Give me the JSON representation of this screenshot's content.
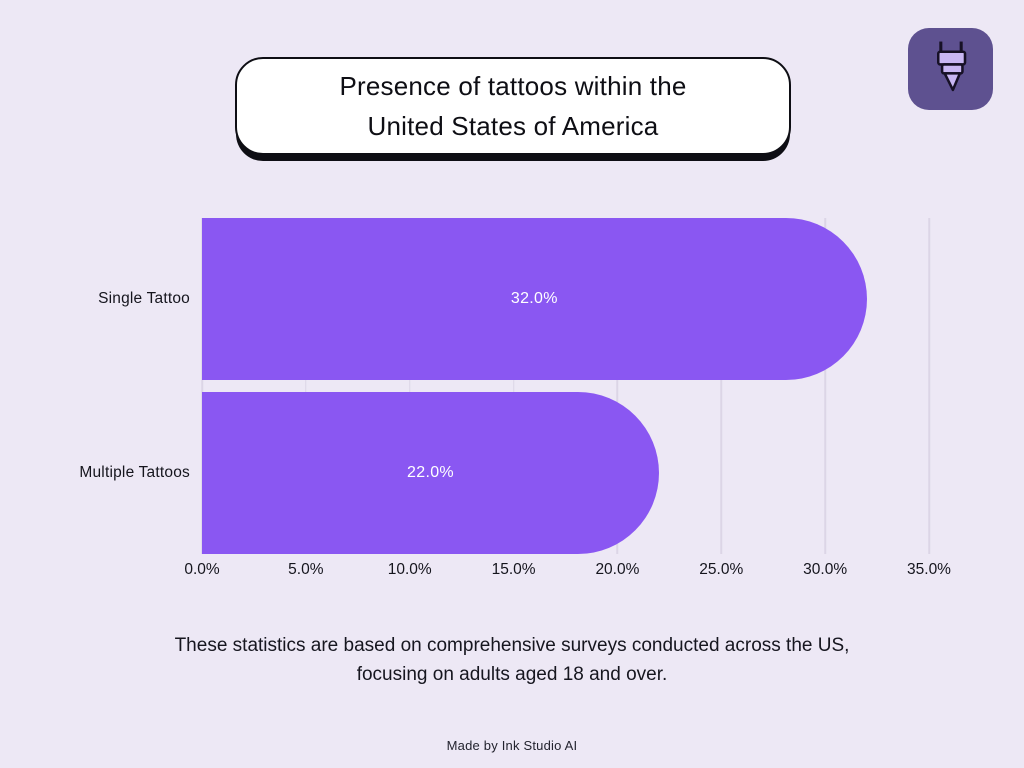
{
  "app": {
    "background_color": "#EDE8F5"
  },
  "header": {
    "title_line1": "Presence of tattoos within the",
    "title_line2": "United States of America",
    "logo": {
      "tile_color": "#5E5190",
      "icon_fill_color": "#C9B7F3",
      "icon_outline_color": "#171126",
      "icon_name": "tattoo-machine-icon"
    }
  },
  "chart_data": {
    "type": "bar",
    "orientation": "horizontal",
    "categories": [
      "Single Tattoo",
      "Multiple Tattoos"
    ],
    "values": [
      32.0,
      22.0
    ],
    "value_labels": [
      "32.0%",
      "22.0%"
    ],
    "xlim": [
      0,
      35
    ],
    "x_ticks": [
      0,
      5,
      10,
      15,
      20,
      25,
      30,
      35
    ],
    "x_tick_labels": [
      "0.0%",
      "5.0%",
      "10.0%",
      "15.0%",
      "20.0%",
      "25.0%",
      "30.0%",
      "35.0%"
    ],
    "bar_color": "#8A57F2",
    "value_text_color": "#FFFFFF",
    "grid": true,
    "gridline_color": "#DCD5E6",
    "legend": "none"
  },
  "footer": {
    "description_line1": "These statistics are based on comprehensive surveys conducted across the US,",
    "description_line2": "focusing on adults aged 18 and over.",
    "credit": "Made by Ink Studio AI"
  }
}
